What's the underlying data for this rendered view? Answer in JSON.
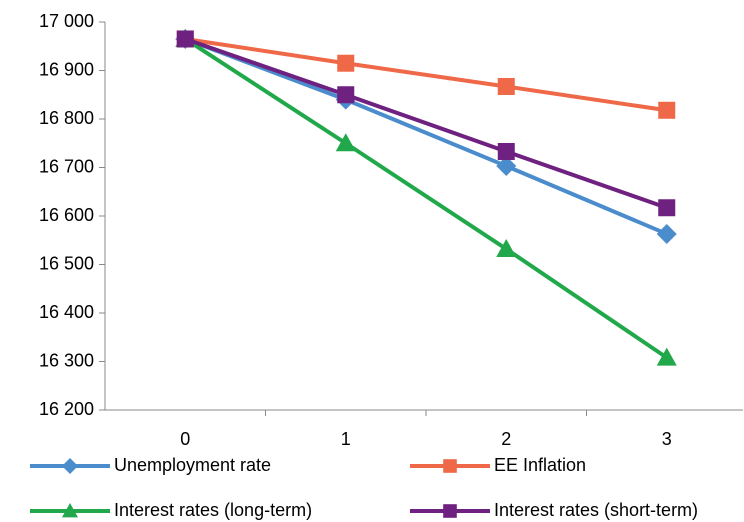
{
  "chart_data": {
    "type": "line",
    "categories": [
      "0",
      "1",
      "2",
      "3"
    ],
    "series": [
      {
        "name": "Unemployment rate",
        "color": "#4a8ccc",
        "marker": "diamond",
        "values": [
          16965,
          16840,
          16703,
          16563
        ]
      },
      {
        "name": "EE Inflation",
        "color": "#ef6848",
        "marker": "square",
        "values": [
          16965,
          16915,
          16867,
          16818
        ]
      },
      {
        "name": "Interest rates (long-term)",
        "color": "#20a84a",
        "marker": "triangle",
        "values": [
          16965,
          16750,
          16532,
          16308
        ]
      },
      {
        "name": "Interest rates (short-term)",
        "color": "#6e2180",
        "marker": "square",
        "values": [
          16965,
          16850,
          16733,
          16617
        ]
      }
    ],
    "ylim": [
      16200,
      17000
    ],
    "yticks": [
      {
        "value": 16200,
        "label": "16 200"
      },
      {
        "value": 16300,
        "label": "16 300"
      },
      {
        "value": 16400,
        "label": "16 400"
      },
      {
        "value": 16500,
        "label": "16 500"
      },
      {
        "value": 16600,
        "label": "16 600"
      },
      {
        "value": 16700,
        "label": "16 700"
      },
      {
        "value": 16800,
        "label": "16 800"
      },
      {
        "value": 16900,
        "label": "16 900"
      },
      {
        "value": 17000,
        "label": "17 000"
      }
    ],
    "grid": false
  }
}
